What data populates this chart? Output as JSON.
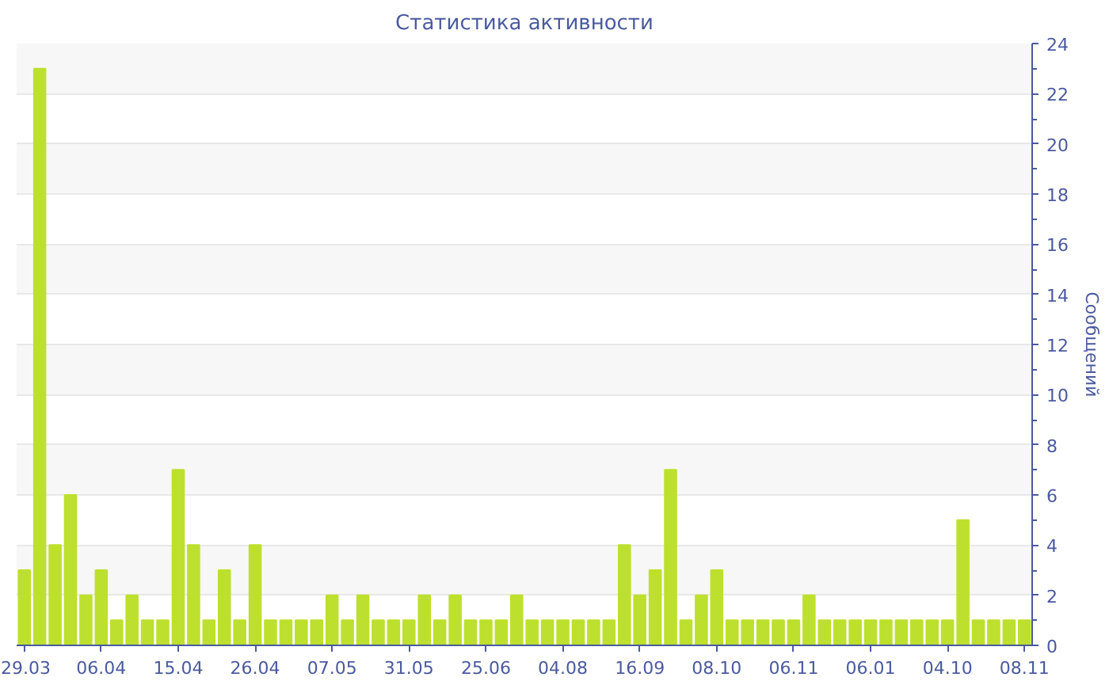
{
  "chart_data": {
    "type": "bar",
    "title": "Статистика активности",
    "ylabel": "Сообщений",
    "categories": [
      "29.03",
      null,
      null,
      null,
      null,
      "06.04",
      null,
      null,
      null,
      null,
      "15.04",
      null,
      null,
      null,
      null,
      "26.04",
      null,
      null,
      null,
      null,
      "07.05",
      null,
      null,
      null,
      null,
      "31.05",
      null,
      null,
      null,
      null,
      "25.06",
      null,
      null,
      null,
      null,
      "04.08",
      null,
      null,
      null,
      null,
      "16.09",
      null,
      null,
      null,
      null,
      "08.10",
      null,
      null,
      null,
      null,
      "06.11",
      null,
      null,
      null,
      null,
      "06.01",
      null,
      null,
      null,
      null,
      "04.10",
      null,
      null,
      null,
      null,
      "08.11"
    ],
    "values": [
      3,
      23,
      4,
      6,
      2,
      3,
      1,
      2,
      1,
      1,
      7,
      4,
      1,
      3,
      1,
      4,
      1,
      1,
      1,
      1,
      2,
      1,
      2,
      1,
      1,
      1,
      2,
      1,
      2,
      1,
      1,
      1,
      2,
      1,
      1,
      1,
      1,
      1,
      1,
      4,
      2,
      3,
      7,
      1,
      2,
      3,
      1,
      1,
      1,
      1,
      1,
      2,
      1,
      1,
      1,
      1,
      1,
      1,
      1,
      1,
      1,
      5,
      1,
      1,
      1,
      1
    ],
    "color": "#bde02e",
    "ylim": [
      0,
      24
    ],
    "yticks": [
      0,
      2,
      4,
      6,
      8,
      10,
      12,
      14,
      16,
      18,
      20,
      22,
      24
    ],
    "grid": "y"
  }
}
